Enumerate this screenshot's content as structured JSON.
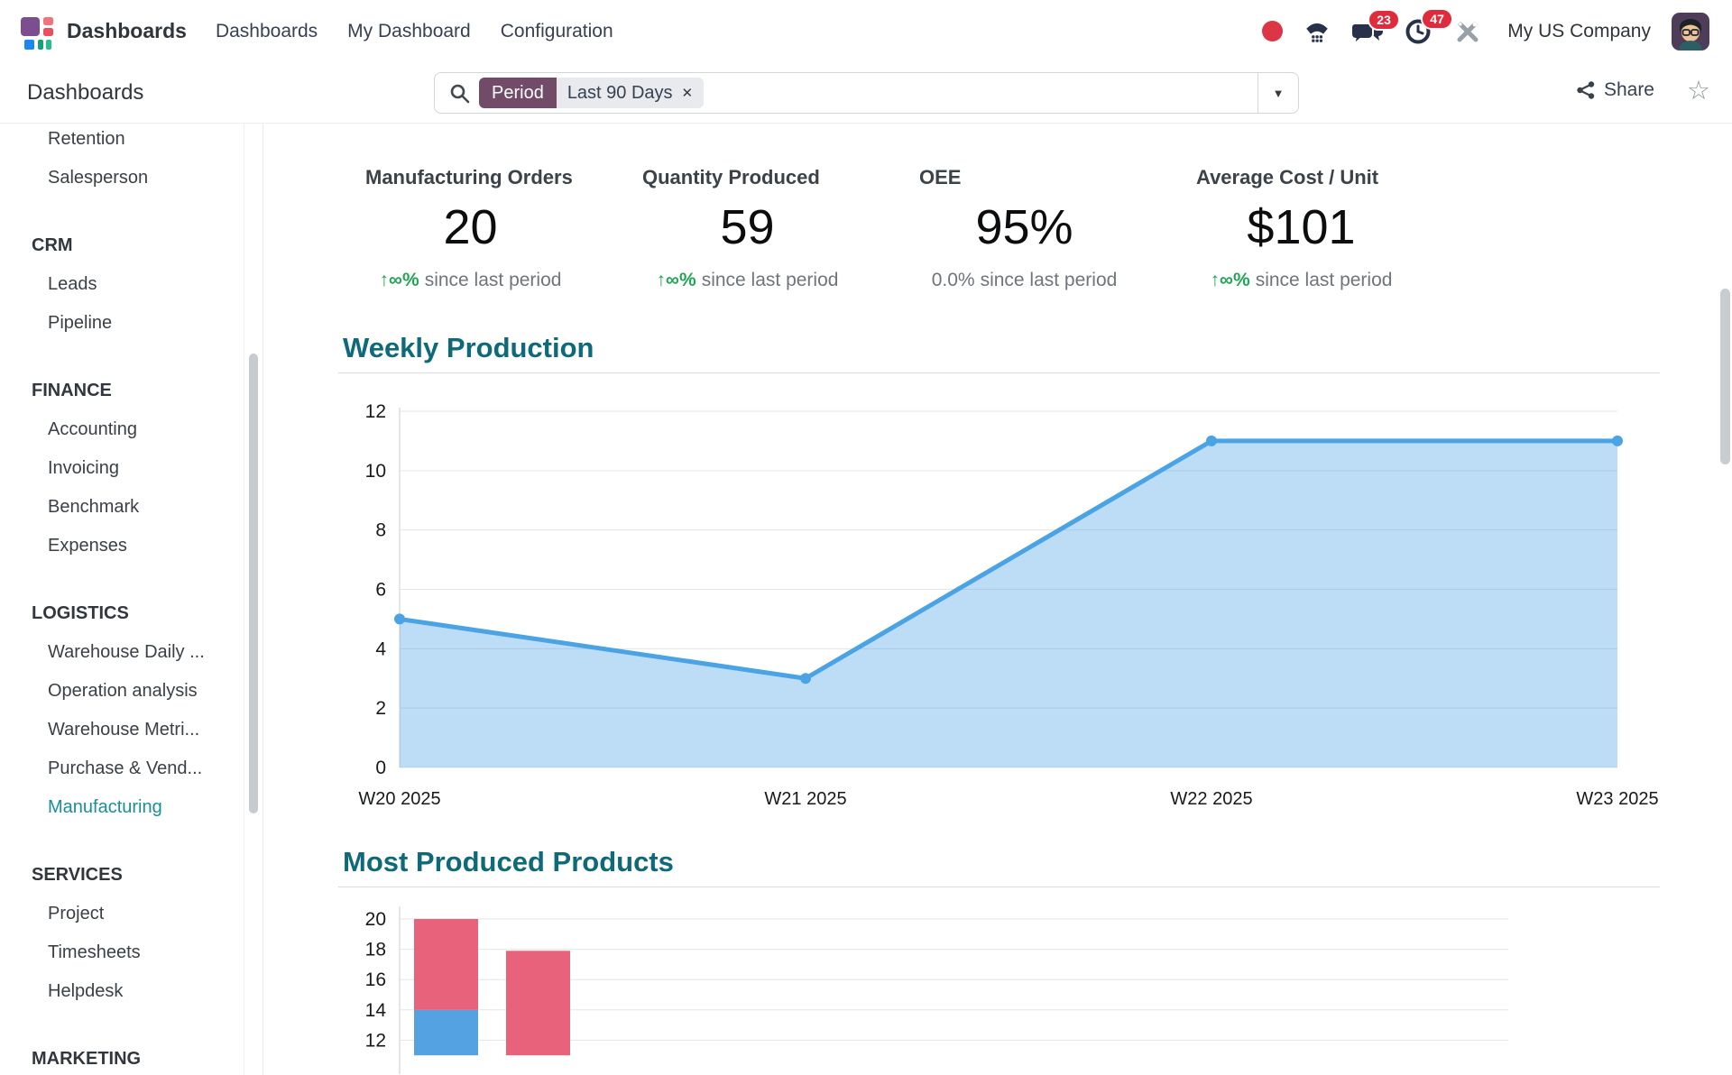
{
  "brand_color": "#714B67",
  "accent_teal": "#0e6a7a",
  "nav": {
    "app_name": "Dashboards",
    "menu": [
      "Dashboards",
      "My Dashboard",
      "Configuration"
    ],
    "message_badge": "23",
    "activity_badge": "47",
    "company": "My US Company"
  },
  "control_panel": {
    "breadcrumb": "Dashboards",
    "search": {
      "facet_label": "Period",
      "facet_value": "Last 90 Days"
    },
    "share_label": "Share"
  },
  "icons": {
    "caret_down": "▼",
    "favorite_star": "☆",
    "remove_x": "✕"
  },
  "sidebar": {
    "active_item": "Manufacturing",
    "groups": [
      {
        "header": "",
        "items": [
          "Retention",
          "Salesperson"
        ]
      },
      {
        "header": "CRM",
        "items": [
          "Leads",
          "Pipeline"
        ]
      },
      {
        "header": "FINANCE",
        "items": [
          "Accounting",
          "Invoicing",
          "Benchmark",
          "Expenses"
        ]
      },
      {
        "header": "LOGISTICS",
        "items": [
          "Warehouse Daily ...",
          "Operation analysis",
          "Warehouse Metri...",
          "Purchase & Vend...",
          "Manufacturing"
        ]
      },
      {
        "header": "SERVICES",
        "items": [
          "Project",
          "Timesheets",
          "Helpdesk"
        ]
      },
      {
        "header": "MARKETING",
        "items": []
      }
    ]
  },
  "kpis": [
    {
      "title": "Manufacturing Orders",
      "value": "20",
      "delta_highlight": "↑∞%",
      "delta_text": "since last period",
      "delta_positive": true
    },
    {
      "title": "Quantity Produced",
      "value": "59",
      "delta_highlight": "↑∞%",
      "delta_text": "since last period",
      "delta_positive": true
    },
    {
      "title": "OEE",
      "value": "95%",
      "delta_highlight": "0.0%",
      "delta_text": "since last period",
      "delta_positive": false
    },
    {
      "title": "Average Cost / Unit",
      "value": "$101",
      "delta_highlight": "↑∞%",
      "delta_text": "since last period",
      "delta_positive": true
    }
  ],
  "sections": {
    "weekly_production": "Weekly Production",
    "most_produced": "Most Produced Products"
  },
  "chart_data": [
    {
      "type": "area",
      "title": "Weekly Production",
      "x": [
        "W20 2025",
        "W21 2025",
        "W22 2025",
        "W23 2025"
      ],
      "values": [
        5,
        3,
        11,
        11
      ],
      "ylim": [
        0,
        12
      ],
      "yticks": [
        0,
        2,
        4,
        6,
        8,
        10,
        12
      ],
      "line_color": "#4aa3e4",
      "fill_opacity": 0.37,
      "grid": true,
      "legend": "none",
      "markers": true
    },
    {
      "type": "bar",
      "title": "Most Produced Products",
      "stacked": true,
      "ylim_visible": [
        11,
        20
      ],
      "yticks": [
        20,
        18,
        16,
        14,
        12
      ],
      "grid": true,
      "legend": "none",
      "x_labels_visible": false,
      "bars": [
        {
          "segments": [
            {
              "from": 11,
              "to": 14,
              "color": "#55a2e2"
            },
            {
              "from": 14,
              "to": 20,
              "color": "#e8627c"
            }
          ]
        },
        {
          "segments": [
            {
              "from": 11,
              "to": 17.9,
              "color": "#e8627c"
            }
          ]
        }
      ]
    }
  ]
}
